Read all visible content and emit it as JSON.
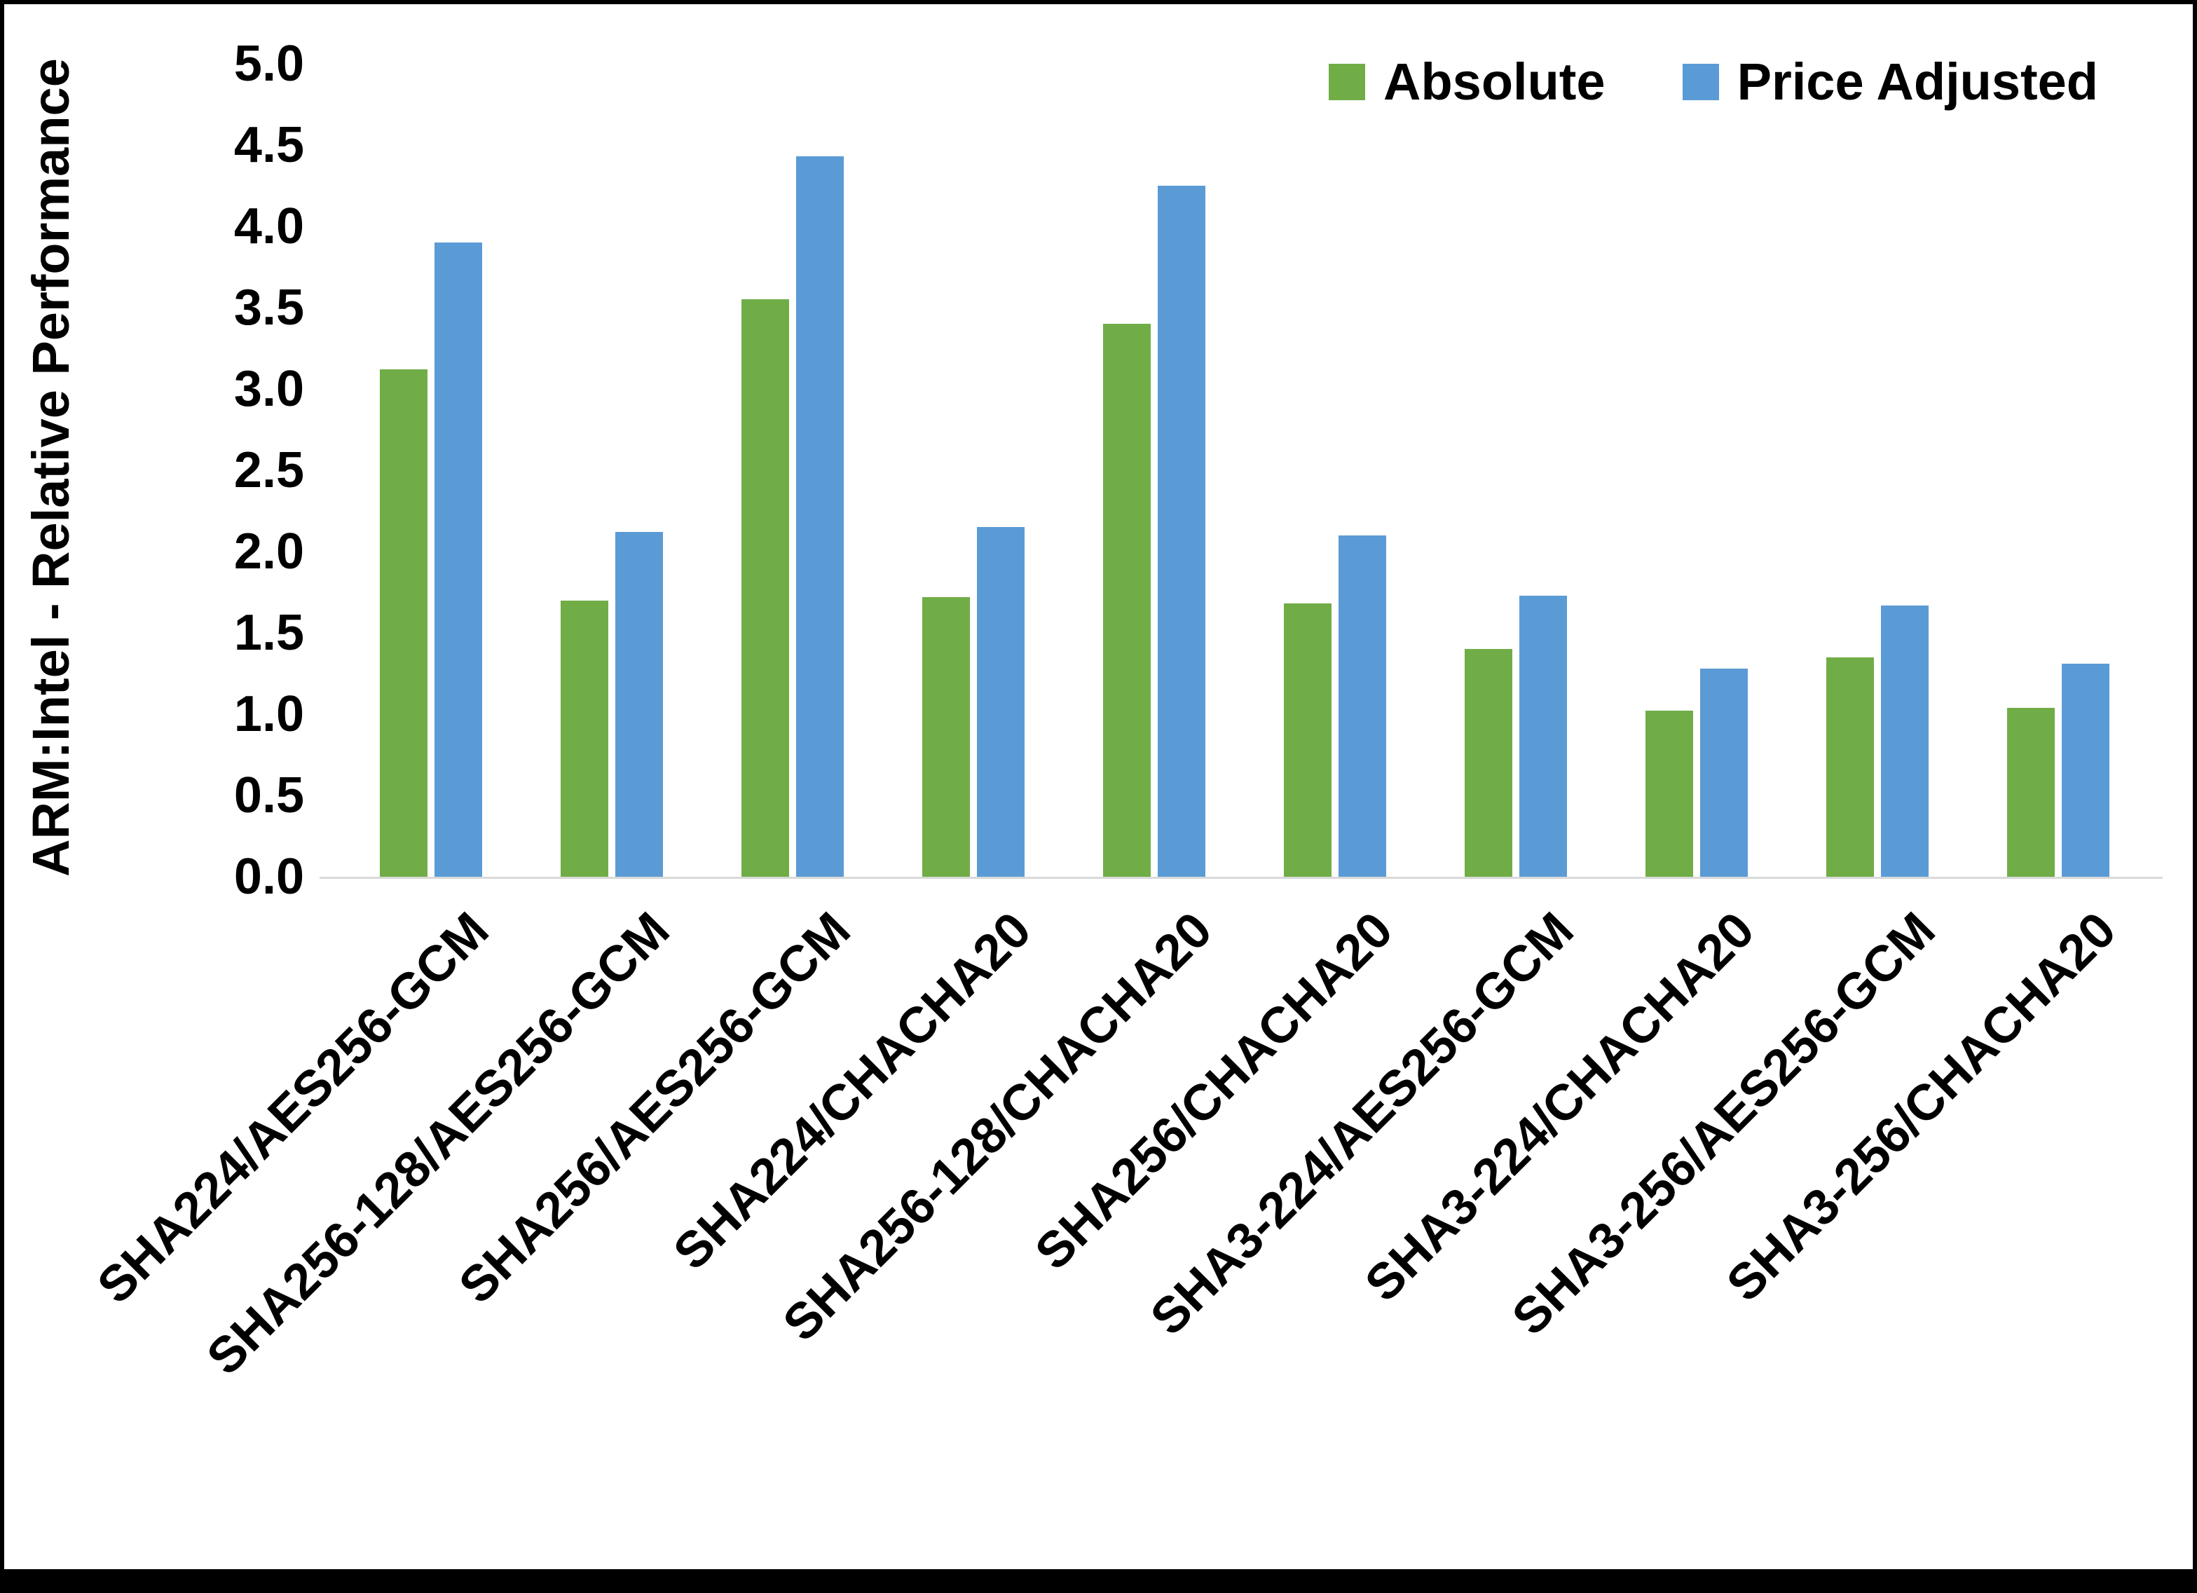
{
  "chart_data": {
    "type": "bar",
    "title": "",
    "xlabel": "",
    "ylabel": "ARM:Intel - Relative Performance",
    "ylim": [
      0,
      5
    ],
    "ytick_step": 0.5,
    "ytick_labels": [
      "0.0",
      "0.5",
      "1.0",
      "1.5",
      "2.0",
      "2.5",
      "3.0",
      "3.5",
      "4.0",
      "4.5",
      "5.0"
    ],
    "grid": false,
    "legend_position": "top-right",
    "categories": [
      "SHA224/AES256-GCM",
      "SHA256-128/AES256-GCM",
      "SHA256/AES256-GCM",
      "SHA224/CHACHA20",
      "SHA256-128/CHACHA20",
      "SHA256/CHACHA20",
      "SHA3-224/AES256-GCM",
      "SHA3-224/CHACHA20",
      "SHA3-256/AES256-GCM",
      "SHA3-256/CHACHA20"
    ],
    "series": [
      {
        "name": "Absolute",
        "color": "#70AD47",
        "values": [
          3.12,
          1.7,
          3.55,
          1.72,
          3.4,
          1.68,
          1.4,
          1.02,
          1.35,
          1.04
        ]
      },
      {
        "name": "Price Adjusted",
        "color": "#5B9BD5",
        "values": [
          3.9,
          2.12,
          4.43,
          2.15,
          4.25,
          2.1,
          1.73,
          1.28,
          1.67,
          1.31
        ]
      }
    ]
  }
}
